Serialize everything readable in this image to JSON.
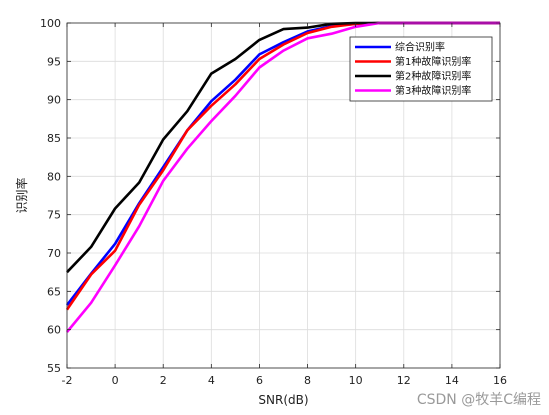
{
  "chart_data": {
    "type": "line",
    "xlabel": "SNR(dB)",
    "ylabel": "识别率",
    "xlim": [
      -2,
      16
    ],
    "ylim": [
      55,
      100
    ],
    "x_ticks": [
      -2,
      0,
      2,
      4,
      6,
      8,
      10,
      12,
      14,
      16
    ],
    "y_ticks": [
      55,
      60,
      65,
      70,
      75,
      80,
      85,
      90,
      95,
      100
    ],
    "grid": true,
    "legend_position": "top-right",
    "x": [
      -2,
      -1,
      0,
      1,
      2,
      3,
      4,
      5,
      6,
      7,
      8,
      9,
      10,
      11,
      12,
      13,
      14,
      15,
      16
    ],
    "series": [
      {
        "name": "综合识别率",
        "color": "#0000ff",
        "values": [
          63.2,
          67.3,
          71.2,
          76.5,
          81.2,
          86.0,
          89.8,
          92.6,
          95.9,
          97.5,
          98.9,
          99.6,
          99.9,
          100,
          100,
          100,
          100,
          100,
          100
        ]
      },
      {
        "name": "第1种故障识别率",
        "color": "#ff0000",
        "values": [
          62.6,
          67.2,
          70.3,
          76.3,
          80.8,
          86.0,
          89.2,
          92.0,
          95.3,
          97.2,
          98.7,
          99.5,
          99.9,
          100,
          100,
          100,
          100,
          100,
          100
        ]
      },
      {
        "name": "第2种故障识别率",
        "color": "#000000",
        "values": [
          67.5,
          70.8,
          75.8,
          79.2,
          84.8,
          88.5,
          93.4,
          95.3,
          97.8,
          99.2,
          99.4,
          99.9,
          100,
          100,
          100,
          100,
          100,
          100,
          100
        ]
      },
      {
        "name": "第3种故障识别率",
        "color": "#ff00ff",
        "values": [
          59.7,
          63.5,
          68.4,
          73.5,
          79.4,
          83.6,
          87.2,
          90.5,
          94.2,
          96.4,
          98.0,
          98.6,
          99.5,
          100,
          100,
          100,
          100,
          100,
          100
        ]
      }
    ]
  },
  "watermark": "CSDN @牧羊C编程"
}
